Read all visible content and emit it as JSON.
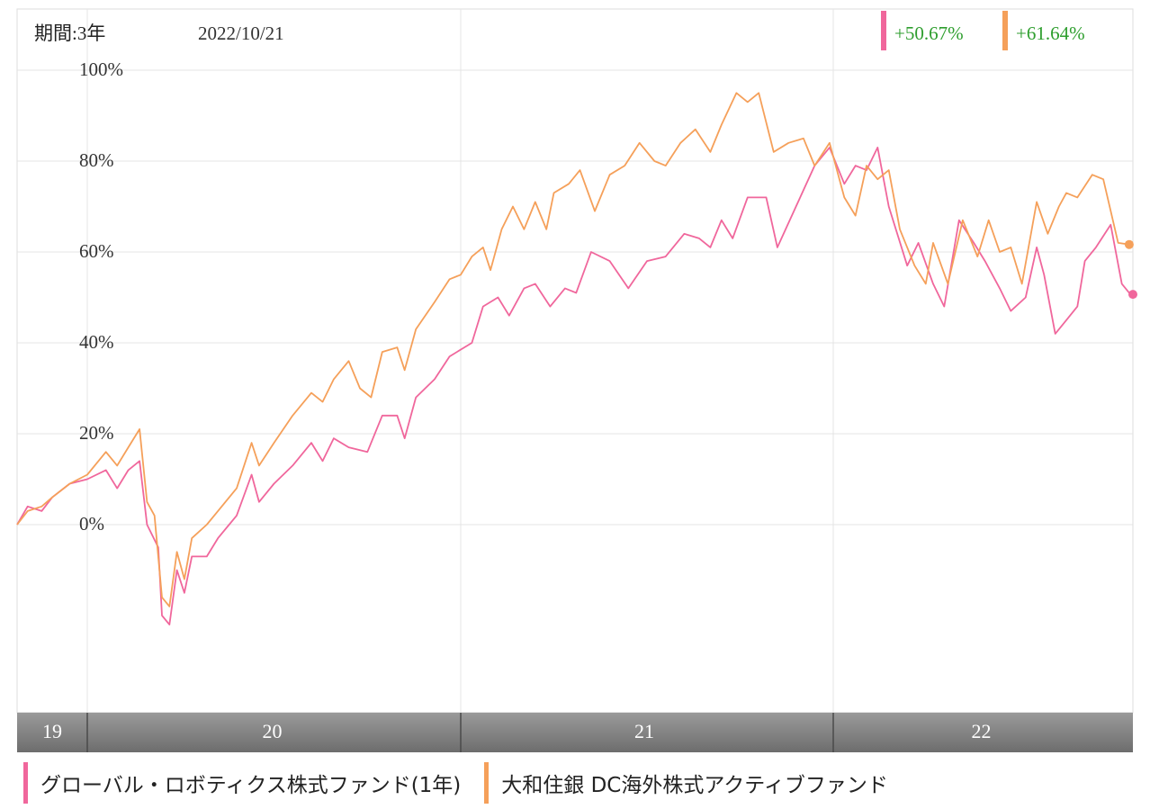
{
  "chart_data": {
    "type": "line",
    "period_label": "期間:3年",
    "date": "2022/10/21",
    "y_ticks": [
      "100%",
      "80%",
      "60%",
      "40%",
      "20%",
      "0%"
    ],
    "x_ticks": [
      "19",
      "20",
      "21",
      "22"
    ],
    "ylim": [
      -40,
      100
    ],
    "xlim": [
      2019.8,
      2022.81
    ],
    "grid": true,
    "legend_position": "bottom",
    "series": [
      {
        "name": "グローバル・ロボティクス株式ファンド(1年)",
        "color": "#f0679c",
        "return_label": "+50.67%",
        "points": [
          [
            2019.8,
            0
          ],
          [
            2019.83,
            4
          ],
          [
            2019.87,
            3
          ],
          [
            2019.9,
            6
          ],
          [
            2019.95,
            9
          ],
          [
            2020.0,
            10
          ],
          [
            2020.05,
            12
          ],
          [
            2020.08,
            8
          ],
          [
            2020.11,
            12
          ],
          [
            2020.14,
            14
          ],
          [
            2020.16,
            0
          ],
          [
            2020.19,
            -5
          ],
          [
            2020.2,
            -20
          ],
          [
            2020.22,
            -22
          ],
          [
            2020.24,
            -10
          ],
          [
            2020.26,
            -15
          ],
          [
            2020.28,
            -7
          ],
          [
            2020.32,
            -7
          ],
          [
            2020.35,
            -3
          ],
          [
            2020.4,
            2
          ],
          [
            2020.44,
            11
          ],
          [
            2020.46,
            5
          ],
          [
            2020.5,
            9
          ],
          [
            2020.55,
            13
          ],
          [
            2020.6,
            18
          ],
          [
            2020.63,
            14
          ],
          [
            2020.66,
            19
          ],
          [
            2020.7,
            17
          ],
          [
            2020.75,
            16
          ],
          [
            2020.79,
            24
          ],
          [
            2020.83,
            24
          ],
          [
            2020.85,
            19
          ],
          [
            2020.88,
            28
          ],
          [
            2020.93,
            32
          ],
          [
            2020.97,
            37
          ],
          [
            2021.03,
            40
          ],
          [
            2021.06,
            48
          ],
          [
            2021.1,
            50
          ],
          [
            2021.13,
            46
          ],
          [
            2021.17,
            52
          ],
          [
            2021.2,
            53
          ],
          [
            2021.24,
            48
          ],
          [
            2021.28,
            52
          ],
          [
            2021.31,
            51
          ],
          [
            2021.35,
            60
          ],
          [
            2021.4,
            58
          ],
          [
            2021.45,
            52
          ],
          [
            2021.5,
            58
          ],
          [
            2021.55,
            59
          ],
          [
            2021.6,
            64
          ],
          [
            2021.64,
            63
          ],
          [
            2021.67,
            61
          ],
          [
            2021.7,
            67
          ],
          [
            2021.73,
            63
          ],
          [
            2021.77,
            72
          ],
          [
            2021.82,
            72
          ],
          [
            2021.85,
            61
          ],
          [
            2021.9,
            70
          ],
          [
            2021.95,
            79
          ],
          [
            2021.99,
            83
          ],
          [
            2022.03,
            75
          ],
          [
            2022.06,
            79
          ],
          [
            2022.09,
            78
          ],
          [
            2022.12,
            83
          ],
          [
            2022.15,
            70
          ],
          [
            2022.2,
            57
          ],
          [
            2022.23,
            62
          ],
          [
            2022.27,
            53
          ],
          [
            2022.3,
            48
          ],
          [
            2022.34,
            67
          ],
          [
            2022.38,
            62
          ],
          [
            2022.41,
            58
          ],
          [
            2022.45,
            52
          ],
          [
            2022.48,
            47
          ],
          [
            2022.52,
            50
          ],
          [
            2022.55,
            61
          ],
          [
            2022.57,
            55
          ],
          [
            2022.6,
            42
          ],
          [
            2022.63,
            45
          ],
          [
            2022.66,
            48
          ],
          [
            2022.68,
            58
          ],
          [
            2022.71,
            61
          ],
          [
            2022.75,
            66
          ],
          [
            2022.78,
            53
          ],
          [
            2022.8,
            51
          ],
          [
            2022.81,
            50.67
          ]
        ]
      },
      {
        "name": "大和住銀 DC海外株式アクティブファンド",
        "color": "#f5a05a",
        "return_label": "+61.64%",
        "points": [
          [
            2019.8,
            0
          ],
          [
            2019.83,
            3
          ],
          [
            2019.87,
            4
          ],
          [
            2019.9,
            6
          ],
          [
            2019.95,
            9
          ],
          [
            2020.0,
            11
          ],
          [
            2020.05,
            16
          ],
          [
            2020.08,
            13
          ],
          [
            2020.11,
            17
          ],
          [
            2020.14,
            21
          ],
          [
            2020.16,
            5
          ],
          [
            2020.18,
            2
          ],
          [
            2020.2,
            -16
          ],
          [
            2020.22,
            -18
          ],
          [
            2020.24,
            -6
          ],
          [
            2020.26,
            -12
          ],
          [
            2020.28,
            -3
          ],
          [
            2020.32,
            0
          ],
          [
            2020.35,
            3
          ],
          [
            2020.4,
            8
          ],
          [
            2020.44,
            18
          ],
          [
            2020.46,
            13
          ],
          [
            2020.5,
            18
          ],
          [
            2020.55,
            24
          ],
          [
            2020.6,
            29
          ],
          [
            2020.63,
            27
          ],
          [
            2020.66,
            32
          ],
          [
            2020.7,
            36
          ],
          [
            2020.73,
            30
          ],
          [
            2020.76,
            28
          ],
          [
            2020.79,
            38
          ],
          [
            2020.83,
            39
          ],
          [
            2020.85,
            34
          ],
          [
            2020.88,
            43
          ],
          [
            2020.93,
            49
          ],
          [
            2020.97,
            54
          ],
          [
            2021.0,
            55
          ],
          [
            2021.03,
            59
          ],
          [
            2021.06,
            61
          ],
          [
            2021.08,
            56
          ],
          [
            2021.11,
            65
          ],
          [
            2021.14,
            70
          ],
          [
            2021.17,
            65
          ],
          [
            2021.2,
            71
          ],
          [
            2021.23,
            65
          ],
          [
            2021.25,
            73
          ],
          [
            2021.29,
            75
          ],
          [
            2021.32,
            78
          ],
          [
            2021.36,
            69
          ],
          [
            2021.4,
            77
          ],
          [
            2021.44,
            79
          ],
          [
            2021.48,
            84
          ],
          [
            2021.52,
            80
          ],
          [
            2021.55,
            79
          ],
          [
            2021.59,
            84
          ],
          [
            2021.63,
            87
          ],
          [
            2021.67,
            82
          ],
          [
            2021.7,
            88
          ],
          [
            2021.74,
            95
          ],
          [
            2021.77,
            93
          ],
          [
            2021.8,
            95
          ],
          [
            2021.84,
            82
          ],
          [
            2021.88,
            84
          ],
          [
            2021.92,
            85
          ],
          [
            2021.95,
            79
          ],
          [
            2021.99,
            84
          ],
          [
            2022.03,
            72
          ],
          [
            2022.06,
            68
          ],
          [
            2022.09,
            79
          ],
          [
            2022.12,
            76
          ],
          [
            2022.15,
            78
          ],
          [
            2022.18,
            65
          ],
          [
            2022.22,
            57
          ],
          [
            2022.25,
            53
          ],
          [
            2022.27,
            62
          ],
          [
            2022.31,
            53
          ],
          [
            2022.35,
            67
          ],
          [
            2022.39,
            59
          ],
          [
            2022.42,
            67
          ],
          [
            2022.45,
            60
          ],
          [
            2022.48,
            61
          ],
          [
            2022.51,
            53
          ],
          [
            2022.55,
            71
          ],
          [
            2022.58,
            64
          ],
          [
            2022.61,
            70
          ],
          [
            2022.63,
            73
          ],
          [
            2022.66,
            72
          ],
          [
            2022.7,
            77
          ],
          [
            2022.73,
            76
          ],
          [
            2022.77,
            62
          ],
          [
            2022.8,
            61.64
          ]
        ]
      }
    ]
  },
  "legend": {
    "items": [
      {
        "label": "グローバル・ロボティクス株式ファンド(1年)",
        "color": "#f0679c"
      },
      {
        "label": "大和住銀 DC海外株式アクティブファンド",
        "color": "#f5a05a"
      }
    ]
  }
}
